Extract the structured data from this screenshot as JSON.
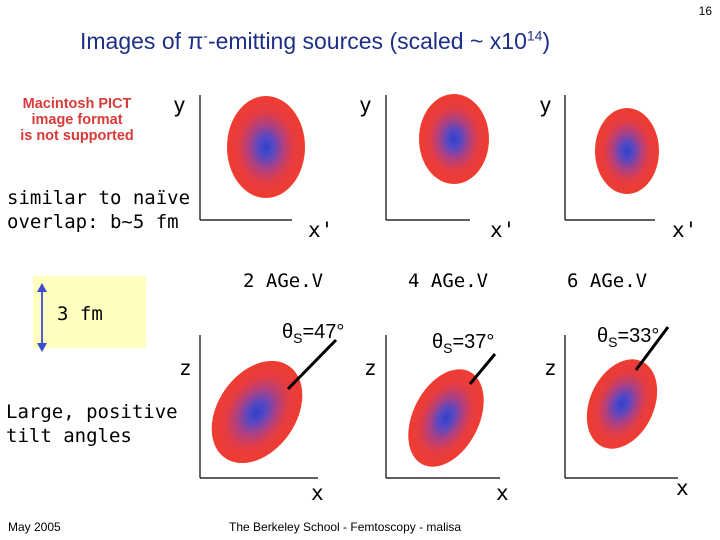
{
  "page_number": "16",
  "title": {
    "prefix": "Images of ",
    "pi": "π",
    "minus": "-",
    "middle": "-emitting sources (scaled ~ x10",
    "exponent": "14",
    "suffix": ")"
  },
  "placeholder_image": {
    "line1": "Macintosh PICT",
    "line2": "image format",
    "line3": "is not supported"
  },
  "notes": {
    "overlap_line1": "similar to naïve",
    "overlap_line2": "overlap: b~5 fm",
    "scale": "3 fm",
    "tilt_line1": "Large, positive",
    "tilt_line2": "tilt angles"
  },
  "panels": [
    {
      "energy": "2 AGe.V",
      "y_label": "y",
      "xprime_label": "x'",
      "z_label": "z",
      "x_label": "x",
      "theta": "θ",
      "theta_sub": "S",
      "theta_val": "=47°"
    },
    {
      "energy": "4 AGe.V",
      "y_label": "y",
      "xprime_label": "x'",
      "z_label": "z",
      "x_label": "x",
      "theta": "θ",
      "theta_sub": "S",
      "theta_val": "=37°"
    },
    {
      "energy": "6 AGe.V",
      "y_label": "y",
      "xprime_label": "x'",
      "z_label": "z",
      "x_label": "x",
      "theta": "θ",
      "theta_sub": "S",
      "theta_val": "=33°"
    }
  ],
  "footer": {
    "date": "May 2005",
    "center": "The Berkeley School - Femtoscopy - malisa"
  },
  "colors": {
    "title": "#1d2f86",
    "source_outer": "#f03c30",
    "source_inner": "#3040c8",
    "scale_box": "#ffffc0",
    "scale_arrow": "#3a4bd0"
  }
}
